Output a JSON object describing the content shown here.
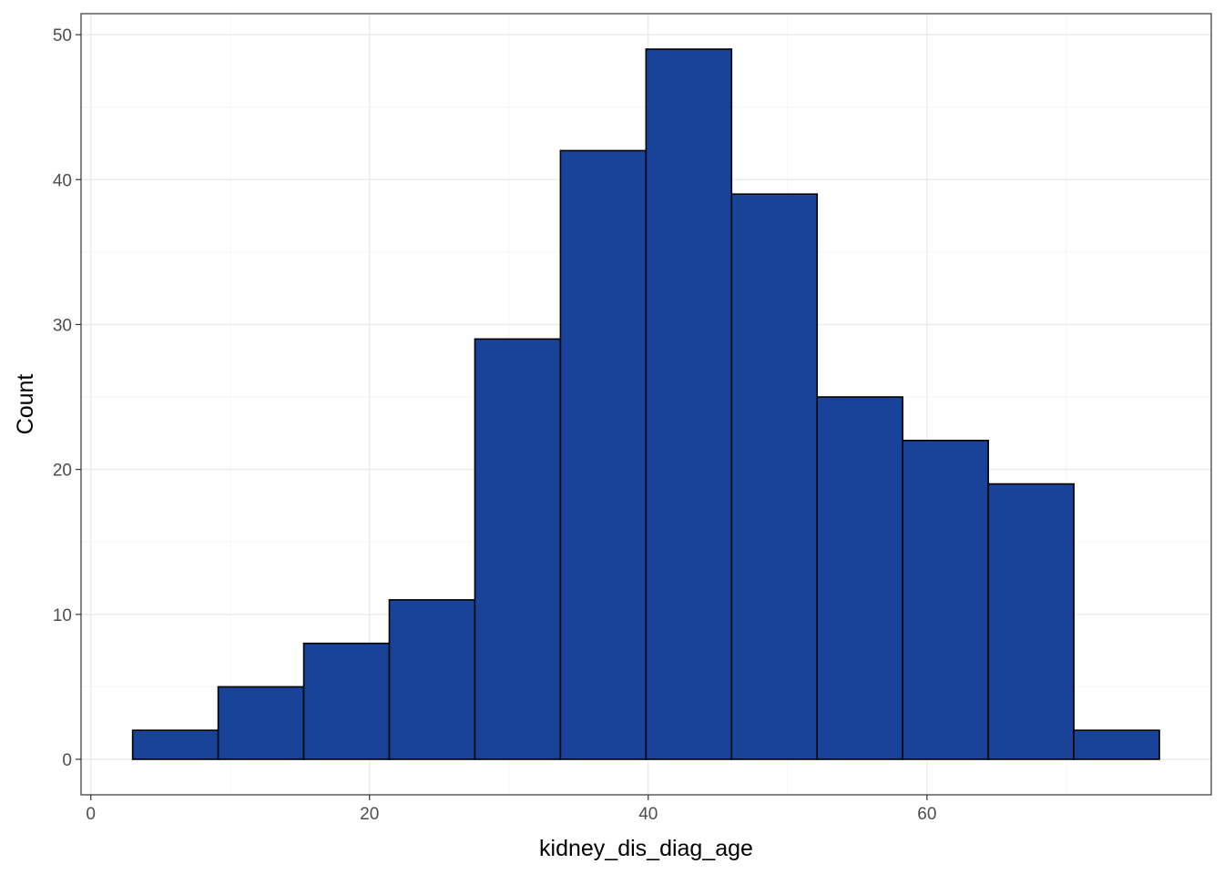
{
  "chart_data": {
    "type": "bar",
    "histogram": true,
    "xlabel": "kidney_dis_diag_age",
    "ylabel": "Count",
    "bin_width": 6.14,
    "bins": [
      {
        "x0": 3.0,
        "x1": 9.14,
        "count": 2
      },
      {
        "x0": 9.14,
        "x1": 15.28,
        "count": 5
      },
      {
        "x0": 15.28,
        "x1": 21.42,
        "count": 8
      },
      {
        "x0": 21.42,
        "x1": 27.56,
        "count": 11
      },
      {
        "x0": 27.56,
        "x1": 33.7,
        "count": 29
      },
      {
        "x0": 33.7,
        "x1": 39.84,
        "count": 42
      },
      {
        "x0": 39.84,
        "x1": 45.98,
        "count": 49
      },
      {
        "x0": 45.98,
        "x1": 52.12,
        "count": 39
      },
      {
        "x0": 52.12,
        "x1": 58.26,
        "count": 25
      },
      {
        "x0": 58.26,
        "x1": 64.4,
        "count": 22
      },
      {
        "x0": 64.4,
        "x1": 70.54,
        "count": 19
      },
      {
        "x0": 70.54,
        "x1": 76.68,
        "count": 2
      }
    ],
    "xlim": [
      -0.7,
      80.4
    ],
    "ylim": [
      -2.45,
      51.45
    ],
    "x_ticks": [
      0,
      20,
      40,
      60
    ],
    "y_ticks": [
      0,
      10,
      20,
      30,
      40,
      50
    ],
    "bar_fill": "#184399",
    "bar_outline": "#000000",
    "grid": true,
    "theme": "bw"
  }
}
